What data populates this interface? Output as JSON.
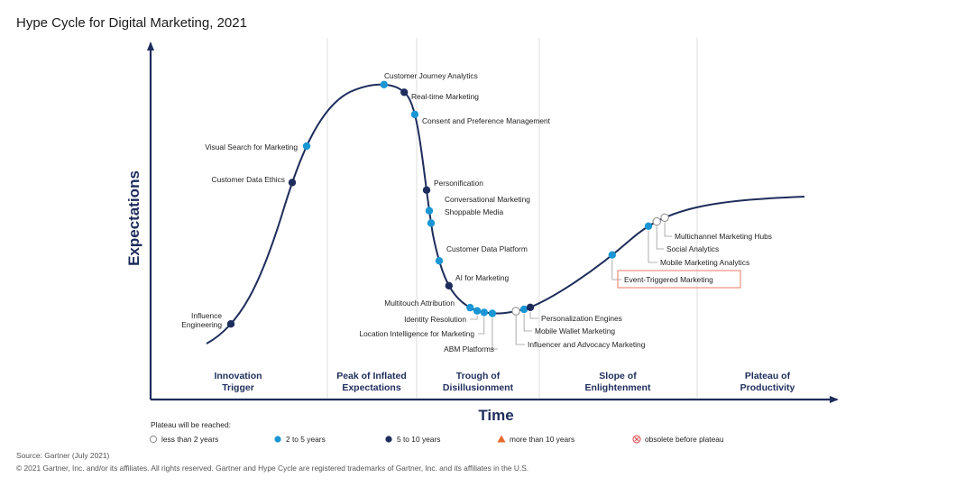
{
  "title": "Hype Cycle for Digital Marketing, 2021",
  "colors": {
    "curve": "#1e2d5c",
    "lt2": "#ffffff",
    "y2to5": "#1a96d4",
    "y5to10": "#1e2d5c",
    "gt10": "#e8692c",
    "obsolete": "#e04040",
    "highlight_border": "#e8786a"
  },
  "chart_data": {
    "type": "scatter",
    "title": "Hype Cycle for Digital Marketing, 2021",
    "xlabel": "Time",
    "ylabel": "Expectations",
    "phases": [
      [
        "Innovation",
        "Trigger"
      ],
      [
        "Peak of Inflated",
        "Expectations"
      ],
      [
        "Trough of",
        "Disillusionment"
      ],
      [
        "Slope of",
        "Enlightenment"
      ],
      [
        "Plateau of",
        "Productivity"
      ]
    ],
    "technologies": [
      {
        "name": [
          "Influence",
          "Engineering"
        ],
        "pos": 0.0375,
        "plateau": "5 to 10 years"
      },
      {
        "name": [
          "Customer Data Ethics"
        ],
        "pos": 0.126,
        "plateau": "5 to 10 years"
      },
      {
        "name": [
          "Visual Search for Marketing"
        ],
        "pos": 0.151,
        "plateau": "2 to 5 years"
      },
      {
        "name": [
          "Customer Journey Analytics"
        ],
        "pos": 0.243,
        "plateau": "2 to 5 years"
      },
      {
        "name": [
          "Real-time Marketing"
        ],
        "pos": 0.271,
        "plateau": "5 to 10 years"
      },
      {
        "name": [
          "Consent and Preference Management"
        ],
        "pos": 0.286,
        "plateau": "2 to 5 years"
      },
      {
        "name": [
          "Personification"
        ],
        "pos": 0.302,
        "plateau": "5 to 10 years"
      },
      {
        "name": [
          "Conversational Marketing"
        ],
        "pos": 0.305,
        "plateau": "2 to 5 years"
      },
      {
        "name": [
          "Shoppable Media"
        ],
        "pos": 0.306,
        "plateau": "2 to 5 years"
      },
      {
        "name": [
          "Customer Data Platform"
        ],
        "pos": 0.315,
        "plateau": "2 to 5 years"
      },
      {
        "name": [
          "AI for Marketing"
        ],
        "pos": 0.327,
        "plateau": "5 to 10 years"
      },
      {
        "name": [
          "Multitouch Attribution"
        ],
        "pos": 0.348,
        "plateau": "2 to 5 years"
      },
      {
        "name": [
          "Identity Resolution"
        ],
        "pos": 0.357,
        "plateau": "2 to 5 years"
      },
      {
        "name": [
          "Location Intelligence for Marketing"
        ],
        "pos": 0.366,
        "plateau": "2 to 5 years"
      },
      {
        "name": [
          "ABM Platforms"
        ],
        "pos": 0.375,
        "plateau": "2 to 5 years"
      },
      {
        "name": [
          "Influencer and Advocacy Marketing"
        ],
        "pos": 0.41,
        "plateau": "less than 2 years"
      },
      {
        "name": [
          "Mobile Wallet Marketing"
        ],
        "pos": 0.42,
        "plateau": "2 to 5 years"
      },
      {
        "name": [
          "Personalization Engines"
        ],
        "pos": 0.428,
        "plateau": "5 to 10 years"
      },
      {
        "name": [
          "Event-Triggered Marketing"
        ],
        "pos": 0.66,
        "plateau": "2 to 5 years",
        "highlight": true
      },
      {
        "name": [
          "Mobile Marketing Analytics"
        ],
        "pos": 0.715,
        "plateau": "2 to 5 years"
      },
      {
        "name": [
          "Social Analytics"
        ],
        "pos": 0.725,
        "plateau": "less than 2 years"
      },
      {
        "name": [
          "Multichannel Marketing Hubs"
        ],
        "pos": 0.735,
        "plateau": "less than 2 years"
      }
    ]
  },
  "legend": {
    "title": "Plateau will be reached:",
    "items": [
      {
        "label": "less than 2 years",
        "marker": "lt2"
      },
      {
        "label": "2 to 5 years",
        "marker": "y2to5"
      },
      {
        "label": "5 to 10 years",
        "marker": "y5to10"
      },
      {
        "label": "more than 10 years",
        "marker": "gt10"
      },
      {
        "label": "obsolete before plateau",
        "marker": "obsolete"
      }
    ]
  },
  "footer": {
    "source": "Source: Gartner (July 2021)",
    "copyright": "© 2021 Gartner, Inc. and/or its affiliates. All rights reserved. Gartner and Hype Cycle are registered trademarks of Gartner, Inc. and its affiliates in the U.S."
  }
}
